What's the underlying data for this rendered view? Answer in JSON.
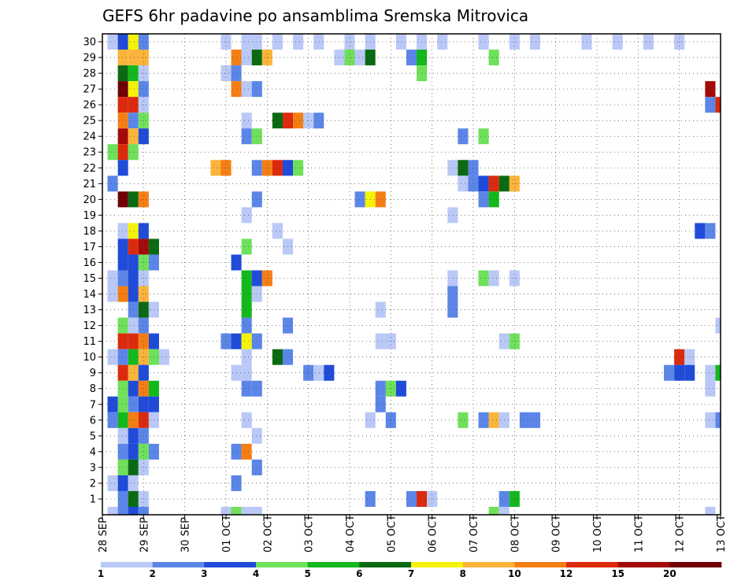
{
  "chart_data": {
    "type": "heatmap",
    "title": "GEFS 6hr padavine po ansamblima Sremska Mitrovica",
    "xlabel": "",
    "ylabel": "",
    "x_tick_labels": [
      "28 SEP",
      "29 SEP",
      "30 SEP",
      "01 OCT",
      "02 OCT",
      "03 OCT",
      "04 OCT",
      "05 OCT",
      "06 OCT",
      "07 OCT",
      "08 OCT",
      "09 OCT",
      "10 OCT",
      "11 OCT",
      "12 OCT",
      "13 OCT"
    ],
    "y_tick_labels": [
      "1",
      "2",
      "3",
      "4",
      "5",
      "6",
      "7",
      "8",
      "9",
      "10",
      "11",
      "12",
      "13",
      "14",
      "15",
      "16",
      "17",
      "18",
      "19",
      "20",
      "21",
      "22",
      "23",
      "24",
      "25",
      "26",
      "27",
      "28",
      "29",
      "30"
    ],
    "x_range_steps": [
      0,
      60
    ],
    "x_unit": "6h steps from 28 SEP 00Z",
    "y_range": [
      0,
      30
    ],
    "grid": true,
    "legend": {
      "placement": "bottom",
      "labels": [
        "1",
        "2",
        "3",
        "4",
        "5",
        "6",
        "7",
        "8",
        "10",
        "12",
        "15",
        "20"
      ],
      "colors": [
        "#b9c8f6",
        "#5b86e8",
        "#1f4bd8",
        "#6fe05a",
        "#12b81c",
        "#0a6a12",
        "#f6f20a",
        "#fbb43a",
        "#f57e14",
        "#dc2a0c",
        "#a40a0a",
        "#6e0006"
      ]
    },
    "cells_note": "each cell: [x step, ensemble member, color class index into legend.colors]",
    "cells": [
      [
        1,
        30,
        0
      ],
      [
        2,
        30,
        2
      ],
      [
        3,
        30,
        6
      ],
      [
        4,
        30,
        1
      ],
      [
        12,
        30,
        0
      ],
      [
        14,
        30,
        0
      ],
      [
        15,
        30,
        0
      ],
      [
        17,
        30,
        0
      ],
      [
        19,
        30,
        0
      ],
      [
        21,
        30,
        0
      ],
      [
        24,
        30,
        0
      ],
      [
        26,
        30,
        0
      ],
      [
        29,
        30,
        0
      ],
      [
        31,
        30,
        0
      ],
      [
        33,
        30,
        0
      ],
      [
        37,
        30,
        0
      ],
      [
        40,
        30,
        0
      ],
      [
        42,
        30,
        0
      ],
      [
        47,
        30,
        0
      ],
      [
        50,
        30,
        0
      ],
      [
        53,
        30,
        0
      ],
      [
        56,
        30,
        0
      ],
      [
        2,
        29,
        7
      ],
      [
        3,
        29,
        7
      ],
      [
        4,
        29,
        7
      ],
      [
        13,
        29,
        8
      ],
      [
        14,
        29,
        0
      ],
      [
        15,
        29,
        5
      ],
      [
        16,
        29,
        7
      ],
      [
        23,
        29,
        0
      ],
      [
        24,
        29,
        3
      ],
      [
        25,
        29,
        0
      ],
      [
        26,
        29,
        5
      ],
      [
        30,
        29,
        1
      ],
      [
        31,
        29,
        4
      ],
      [
        38,
        29,
        3
      ],
      [
        2,
        28,
        5
      ],
      [
        3,
        28,
        4
      ],
      [
        4,
        28,
        0
      ],
      [
        12,
        28,
        0
      ],
      [
        13,
        28,
        1
      ],
      [
        31,
        28,
        3
      ],
      [
        2,
        27,
        11
      ],
      [
        3,
        27,
        6
      ],
      [
        4,
        27,
        1
      ],
      [
        13,
        27,
        8
      ],
      [
        14,
        27,
        0
      ],
      [
        15,
        27,
        1
      ],
      [
        59,
        27,
        10
      ],
      [
        2,
        26,
        9
      ],
      [
        3,
        26,
        9
      ],
      [
        4,
        26,
        0
      ],
      [
        59,
        26,
        1
      ],
      [
        60,
        26,
        9
      ],
      [
        2,
        25,
        8
      ],
      [
        3,
        25,
        1
      ],
      [
        4,
        25,
        3
      ],
      [
        14,
        25,
        0
      ],
      [
        17,
        25,
        5
      ],
      [
        18,
        25,
        9
      ],
      [
        19,
        25,
        8
      ],
      [
        20,
        25,
        0
      ],
      [
        21,
        25,
        1
      ],
      [
        2,
        24,
        10
      ],
      [
        3,
        24,
        7
      ],
      [
        4,
        24,
        2
      ],
      [
        14,
        24,
        1
      ],
      [
        15,
        24,
        3
      ],
      [
        35,
        24,
        1
      ],
      [
        37,
        24,
        3
      ],
      [
        1,
        23,
        3
      ],
      [
        2,
        23,
        9
      ],
      [
        3,
        23,
        3
      ],
      [
        2,
        22,
        2
      ],
      [
        11,
        22,
        7
      ],
      [
        12,
        22,
        8
      ],
      [
        15,
        22,
        1
      ],
      [
        16,
        22,
        8
      ],
      [
        17,
        22,
        9
      ],
      [
        18,
        22,
        2
      ],
      [
        19,
        22,
        3
      ],
      [
        34,
        22,
        0
      ],
      [
        35,
        22,
        5
      ],
      [
        36,
        22,
        1
      ],
      [
        1,
        21,
        1
      ],
      [
        35,
        21,
        0
      ],
      [
        36,
        21,
        1
      ],
      [
        37,
        21,
        2
      ],
      [
        38,
        21,
        9
      ],
      [
        39,
        21,
        5
      ],
      [
        40,
        21,
        7
      ],
      [
        2,
        20,
        11
      ],
      [
        3,
        20,
        5
      ],
      [
        4,
        20,
        8
      ],
      [
        15,
        20,
        1
      ],
      [
        25,
        20,
        1
      ],
      [
        26,
        20,
        6
      ],
      [
        27,
        20,
        8
      ],
      [
        37,
        20,
        1
      ],
      [
        38,
        20,
        4
      ],
      [
        14,
        19,
        0
      ],
      [
        34,
        19,
        0
      ],
      [
        2,
        18,
        0
      ],
      [
        3,
        18,
        6
      ],
      [
        4,
        18,
        2
      ],
      [
        17,
        18,
        0
      ],
      [
        58,
        18,
        2
      ],
      [
        59,
        18,
        1
      ],
      [
        2,
        17,
        2
      ],
      [
        3,
        17,
        9
      ],
      [
        4,
        17,
        10
      ],
      [
        5,
        17,
        5
      ],
      [
        14,
        17,
        3
      ],
      [
        18,
        17,
        0
      ],
      [
        2,
        16,
        2
      ],
      [
        3,
        16,
        2
      ],
      [
        4,
        16,
        3
      ],
      [
        5,
        16,
        1
      ],
      [
        13,
        16,
        2
      ],
      [
        1,
        15,
        0
      ],
      [
        2,
        15,
        1
      ],
      [
        3,
        15,
        2
      ],
      [
        4,
        15,
        0
      ],
      [
        14,
        15,
        4
      ],
      [
        15,
        15,
        2
      ],
      [
        16,
        15,
        8
      ],
      [
        34,
        15,
        0
      ],
      [
        37,
        15,
        3
      ],
      [
        38,
        15,
        0
      ],
      [
        40,
        15,
        0
      ],
      [
        1,
        14,
        0
      ],
      [
        2,
        14,
        8
      ],
      [
        3,
        14,
        2
      ],
      [
        4,
        14,
        7
      ],
      [
        14,
        14,
        4
      ],
      [
        15,
        14,
        0
      ],
      [
        34,
        14,
        1
      ],
      [
        3,
        13,
        1
      ],
      [
        4,
        13,
        5
      ],
      [
        5,
        13,
        0
      ],
      [
        14,
        13,
        4
      ],
      [
        27,
        13,
        0
      ],
      [
        34,
        13,
        1
      ],
      [
        2,
        12,
        3
      ],
      [
        3,
        12,
        0
      ],
      [
        4,
        12,
        1
      ],
      [
        14,
        12,
        1
      ],
      [
        18,
        12,
        1
      ],
      [
        60,
        12,
        0
      ],
      [
        2,
        11,
        9
      ],
      [
        3,
        11,
        9
      ],
      [
        4,
        11,
        8
      ],
      [
        5,
        11,
        2
      ],
      [
        12,
        11,
        1
      ],
      [
        13,
        11,
        2
      ],
      [
        14,
        11,
        6
      ],
      [
        15,
        11,
        1
      ],
      [
        27,
        11,
        0
      ],
      [
        28,
        11,
        0
      ],
      [
        39,
        11,
        0
      ],
      [
        40,
        11,
        3
      ],
      [
        1,
        10,
        0
      ],
      [
        2,
        10,
        1
      ],
      [
        3,
        10,
        4
      ],
      [
        4,
        10,
        7
      ],
      [
        5,
        10,
        3
      ],
      [
        6,
        10,
        0
      ],
      [
        14,
        10,
        0
      ],
      [
        17,
        10,
        5
      ],
      [
        18,
        10,
        1
      ],
      [
        56,
        10,
        9
      ],
      [
        57,
        10,
        0
      ],
      [
        2,
        9,
        9
      ],
      [
        3,
        9,
        7
      ],
      [
        4,
        9,
        2
      ],
      [
        13,
        9,
        0
      ],
      [
        14,
        9,
        0
      ],
      [
        20,
        9,
        1
      ],
      [
        21,
        9,
        0
      ],
      [
        22,
        9,
        2
      ],
      [
        55,
        9,
        1
      ],
      [
        56,
        9,
        2
      ],
      [
        57,
        9,
        2
      ],
      [
        59,
        9,
        0
      ],
      [
        60,
        9,
        4
      ],
      [
        2,
        8,
        3
      ],
      [
        3,
        8,
        2
      ],
      [
        4,
        8,
        8
      ],
      [
        5,
        8,
        4
      ],
      [
        14,
        8,
        1
      ],
      [
        15,
        8,
        1
      ],
      [
        27,
        8,
        1
      ],
      [
        28,
        8,
        3
      ],
      [
        29,
        8,
        2
      ],
      [
        59,
        8,
        0
      ],
      [
        1,
        7,
        2
      ],
      [
        2,
        7,
        3
      ],
      [
        3,
        7,
        1
      ],
      [
        4,
        7,
        2
      ],
      [
        5,
        7,
        2
      ],
      [
        27,
        7,
        1
      ],
      [
        1,
        6,
        1
      ],
      [
        2,
        6,
        4
      ],
      [
        3,
        6,
        8
      ],
      [
        4,
        6,
        9
      ],
      [
        5,
        6,
        0
      ],
      [
        14,
        6,
        0
      ],
      [
        26,
        6,
        0
      ],
      [
        28,
        6,
        1
      ],
      [
        35,
        6,
        3
      ],
      [
        37,
        6,
        1
      ],
      [
        38,
        6,
        7
      ],
      [
        39,
        6,
        0
      ],
      [
        41,
        6,
        1
      ],
      [
        42,
        6,
        1
      ],
      [
        59,
        6,
        0
      ],
      [
        60,
        6,
        1
      ],
      [
        2,
        5,
        0
      ],
      [
        3,
        5,
        2
      ],
      [
        4,
        5,
        1
      ],
      [
        15,
        5,
        0
      ],
      [
        2,
        4,
        1
      ],
      [
        3,
        4,
        2
      ],
      [
        4,
        4,
        3
      ],
      [
        5,
        4,
        1
      ],
      [
        13,
        4,
        1
      ],
      [
        14,
        4,
        8
      ],
      [
        2,
        3,
        3
      ],
      [
        3,
        3,
        5
      ],
      [
        4,
        3,
        0
      ],
      [
        15,
        3,
        1
      ],
      [
        1,
        2,
        0
      ],
      [
        2,
        2,
        2
      ],
      [
        3,
        2,
        0
      ],
      [
        13,
        2,
        1
      ],
      [
        2,
        1,
        1
      ],
      [
        3,
        1,
        5
      ],
      [
        4,
        1,
        0
      ],
      [
        26,
        1,
        1
      ],
      [
        30,
        1,
        1
      ],
      [
        31,
        1,
        9
      ],
      [
        32,
        1,
        0
      ],
      [
        39,
        1,
        1
      ],
      [
        40,
        1,
        4
      ],
      [
        1,
        0,
        0
      ],
      [
        2,
        0,
        1
      ],
      [
        3,
        0,
        2
      ],
      [
        4,
        0,
        1
      ],
      [
        12,
        0,
        0
      ],
      [
        13,
        0,
        3
      ],
      [
        14,
        0,
        0
      ],
      [
        15,
        0,
        0
      ],
      [
        38,
        0,
        3
      ],
      [
        39,
        0,
        0
      ],
      [
        59,
        0,
        0
      ]
    ]
  }
}
